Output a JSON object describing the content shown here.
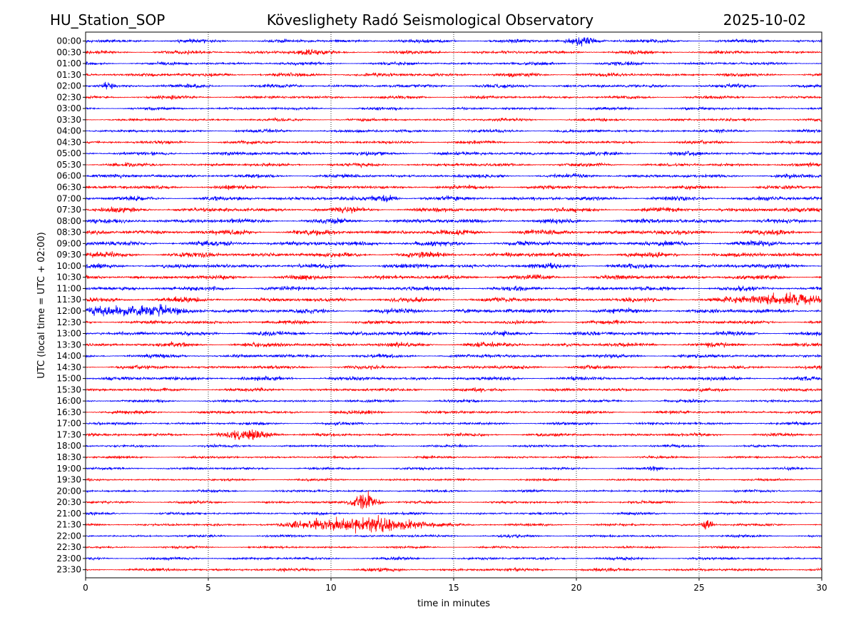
{
  "chart_data": {
    "type": "line",
    "header": {
      "station": "HU_Station_SOP",
      "title": "Köveslighety Radó Seismological Observatory",
      "date": "2025-10-02"
    },
    "xlabel": "time in minutes",
    "ylabel": "UTC (local time = UTC + 02:00)",
    "xlim": [
      0,
      30
    ],
    "x_ticks": [
      0,
      5,
      10,
      15,
      20,
      25,
      30
    ],
    "x_tick_labels": [
      "0",
      "5",
      "10",
      "15",
      "20",
      "25",
      "30"
    ],
    "grid": "vertical dotted at x ticks",
    "series_colors": [
      "#0000ff",
      "#ff0000"
    ],
    "rows": [
      {
        "label": "00:00",
        "color": "#0000ff",
        "level": 0.55,
        "events": [
          {
            "t": 20.2,
            "amp": 1.4,
            "dur": 0.5
          }
        ]
      },
      {
        "label": "00:30",
        "color": "#ff0000",
        "level": 0.55,
        "events": [
          {
            "t": 9.1,
            "amp": 1.0,
            "dur": 0.4
          }
        ]
      },
      {
        "label": "01:00",
        "color": "#0000ff",
        "level": 0.5,
        "events": []
      },
      {
        "label": "01:30",
        "color": "#ff0000",
        "level": 0.6,
        "events": []
      },
      {
        "label": "02:00",
        "color": "#0000ff",
        "level": 0.55,
        "events": [
          {
            "t": 0.9,
            "amp": 1.0,
            "dur": 0.3
          }
        ]
      },
      {
        "label": "02:30",
        "color": "#ff0000",
        "level": 0.5,
        "events": []
      },
      {
        "label": "03:00",
        "color": "#0000ff",
        "level": 0.45,
        "events": []
      },
      {
        "label": "03:30",
        "color": "#ff0000",
        "level": 0.45,
        "events": []
      },
      {
        "label": "04:00",
        "color": "#0000ff",
        "level": 0.5,
        "events": []
      },
      {
        "label": "04:30",
        "color": "#ff0000",
        "level": 0.5,
        "events": []
      },
      {
        "label": "05:00",
        "color": "#0000ff",
        "level": 0.6,
        "events": []
      },
      {
        "label": "05:30",
        "color": "#ff0000",
        "level": 0.55,
        "events": []
      },
      {
        "label": "06:00",
        "color": "#0000ff",
        "level": 0.6,
        "events": []
      },
      {
        "label": "06:30",
        "color": "#ff0000",
        "level": 0.6,
        "events": []
      },
      {
        "label": "07:00",
        "color": "#0000ff",
        "level": 0.7,
        "events": [
          {
            "t": 12.3,
            "amp": 1.2,
            "dur": 0.4
          }
        ]
      },
      {
        "label": "07:30",
        "color": "#ff0000",
        "level": 0.75,
        "events": []
      },
      {
        "label": "08:00",
        "color": "#0000ff",
        "level": 0.75,
        "events": []
      },
      {
        "label": "08:30",
        "color": "#ff0000",
        "level": 0.8,
        "events": []
      },
      {
        "label": "09:00",
        "color": "#0000ff",
        "level": 0.8,
        "events": []
      },
      {
        "label": "09:30",
        "color": "#ff0000",
        "level": 0.8,
        "events": []
      },
      {
        "label": "10:00",
        "color": "#0000ff",
        "level": 0.75,
        "events": []
      },
      {
        "label": "10:30",
        "color": "#ff0000",
        "level": 0.75,
        "events": []
      },
      {
        "label": "11:00",
        "color": "#0000ff",
        "level": 0.7,
        "events": []
      },
      {
        "label": "11:30",
        "color": "#ff0000",
        "level": 0.75,
        "events": [
          {
            "t": 28.5,
            "amp": 1.8,
            "dur": 1.5
          }
        ]
      },
      {
        "label": "12:00",
        "color": "#0000ff",
        "level": 0.75,
        "events": [
          {
            "t": 1.8,
            "amp": 1.7,
            "dur": 1.6
          }
        ]
      },
      {
        "label": "12:30",
        "color": "#ff0000",
        "level": 0.6,
        "events": []
      },
      {
        "label": "13:00",
        "color": "#0000ff",
        "level": 0.7,
        "events": []
      },
      {
        "label": "13:30",
        "color": "#ff0000",
        "level": 0.7,
        "events": []
      },
      {
        "label": "14:00",
        "color": "#0000ff",
        "level": 0.6,
        "events": []
      },
      {
        "label": "14:30",
        "color": "#ff0000",
        "level": 0.6,
        "events": []
      },
      {
        "label": "15:00",
        "color": "#0000ff",
        "level": 0.65,
        "events": []
      },
      {
        "label": "15:30",
        "color": "#ff0000",
        "level": 0.55,
        "events": []
      },
      {
        "label": "16:00",
        "color": "#0000ff",
        "level": 0.45,
        "events": []
      },
      {
        "label": "16:30",
        "color": "#ff0000",
        "level": 0.5,
        "events": []
      },
      {
        "label": "17:00",
        "color": "#0000ff",
        "level": 0.45,
        "events": []
      },
      {
        "label": "17:30",
        "color": "#ff0000",
        "level": 0.5,
        "events": [
          {
            "t": 6.7,
            "amp": 1.6,
            "dur": 1.0
          }
        ]
      },
      {
        "label": "18:00",
        "color": "#0000ff",
        "level": 0.4,
        "events": []
      },
      {
        "label": "18:30",
        "color": "#ff0000",
        "level": 0.4,
        "events": []
      },
      {
        "label": "19:00",
        "color": "#0000ff",
        "level": 0.4,
        "events": [
          {
            "t": 23.2,
            "amp": 0.8,
            "dur": 0.2
          }
        ]
      },
      {
        "label": "19:30",
        "color": "#ff0000",
        "level": 0.35,
        "events": []
      },
      {
        "label": "20:00",
        "color": "#0000ff",
        "level": 0.4,
        "events": []
      },
      {
        "label": "20:30",
        "color": "#ff0000",
        "level": 0.4,
        "events": [
          {
            "t": 11.4,
            "amp": 3.2,
            "dur": 0.5
          }
        ]
      },
      {
        "label": "21:00",
        "color": "#0000ff",
        "level": 0.4,
        "events": []
      },
      {
        "label": "21:30",
        "color": "#ff0000",
        "level": 0.4,
        "events": [
          {
            "t": 11.3,
            "amp": 2.6,
            "dur": 2.4
          },
          {
            "t": 25.3,
            "amp": 2.2,
            "dur": 0.25
          }
        ]
      },
      {
        "label": "22:00",
        "color": "#0000ff",
        "level": 0.4,
        "events": []
      },
      {
        "label": "22:30",
        "color": "#ff0000",
        "level": 0.35,
        "events": []
      },
      {
        "label": "23:00",
        "color": "#0000ff",
        "level": 0.45,
        "events": []
      },
      {
        "label": "23:30",
        "color": "#ff0000",
        "level": 0.5,
        "events": []
      }
    ]
  }
}
